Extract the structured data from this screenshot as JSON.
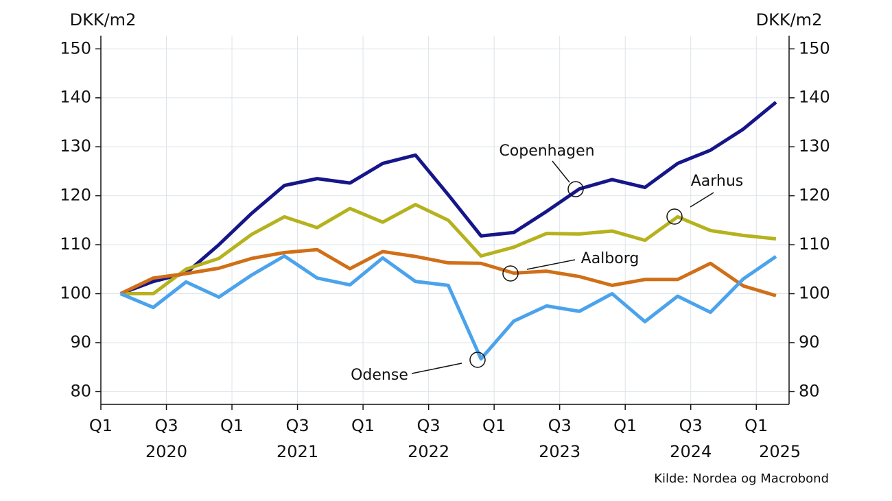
{
  "chart_data": {
    "type": "line",
    "y_label": "DKK/m2",
    "y2_label": "DKK/m2",
    "source": "Kilde: Nordea og Macrobond",
    "x": [
      2020.15,
      2020.4,
      2020.65,
      2020.9,
      2021.15,
      2021.4,
      2021.65,
      2021.9,
      2022.15,
      2022.4,
      2022.65,
      2022.9,
      2023.15,
      2023.4,
      2023.65,
      2023.9,
      2024.15,
      2024.4,
      2024.65,
      2024.9,
      2025.15
    ],
    "xlim": [
      2020,
      2025.25
    ],
    "xticks": [
      {
        "value": 2020,
        "label": "Q1"
      },
      {
        "value": 2020.5,
        "label": "Q3"
      },
      {
        "value": 2021,
        "label": "Q1"
      },
      {
        "value": 2021.5,
        "label": "Q3"
      },
      {
        "value": 2022,
        "label": "Q1"
      },
      {
        "value": 2022.5,
        "label": "Q3"
      },
      {
        "value": 2023,
        "label": "Q1"
      },
      {
        "value": 2023.5,
        "label": "Q3"
      },
      {
        "value": 2024,
        "label": "Q1"
      },
      {
        "value": 2024.5,
        "label": "Q3"
      },
      {
        "value": 2025,
        "label": "Q1"
      }
    ],
    "year_labels": [
      {
        "value": 2020.5,
        "label": "2020"
      },
      {
        "value": 2021.5,
        "label": "2021"
      },
      {
        "value": 2022.5,
        "label": "2022"
      },
      {
        "value": 2023.5,
        "label": "2023"
      },
      {
        "value": 2024.5,
        "label": "2024"
      },
      {
        "value": 2025.18,
        "label": "2025"
      }
    ],
    "ylim": [
      77.4,
      152.7
    ],
    "yticks": [
      80,
      90,
      100,
      110,
      120,
      130,
      140,
      150
    ],
    "y2lim": [
      77.4,
      152.7
    ],
    "y2ticks": [
      80,
      90,
      100,
      110,
      120,
      130,
      140,
      150
    ],
    "grid": true,
    "series": [
      {
        "name": "Copenhagen",
        "color": "#16168a",
        "values": [
          100,
          102.5,
          104.2,
          110,
          116.4,
          122.1,
          123.5,
          122.6,
          126.6,
          128.3,
          120.2,
          111.8,
          112.5,
          116.8,
          121.4,
          123.3,
          121.7,
          126.6,
          129.3,
          133.6,
          139.1
        ]
      },
      {
        "name": "Aarhus",
        "color": "#b5b21e",
        "values": [
          100,
          100,
          105,
          107.2,
          112.1,
          115.7,
          113.5,
          117.4,
          114.6,
          118.2,
          115,
          107.7,
          109.5,
          112.3,
          112.2,
          112.8,
          110.9,
          115.7,
          112.9,
          111.9,
          111.2
        ]
      },
      {
        "name": "Aalborg",
        "color": "#d06f17",
        "values": [
          100,
          103.2,
          104.1,
          105.2,
          107.2,
          108.4,
          109,
          105.1,
          108.6,
          107.6,
          106.3,
          106.2,
          104.2,
          104.6,
          103.5,
          101.7,
          102.9,
          102.9,
          106.2,
          101.6,
          99.6
        ]
      },
      {
        "name": "Odense",
        "color": "#4aa3ec",
        "values": [
          100,
          97.2,
          102.4,
          99.3,
          103.8,
          107.7,
          103.2,
          101.8,
          107.3,
          102.5,
          101.7,
          86.7,
          94.4,
          97.5,
          96.4,
          100,
          94.3,
          99.5,
          96.2,
          103,
          107.6
        ]
      }
    ]
  }
}
